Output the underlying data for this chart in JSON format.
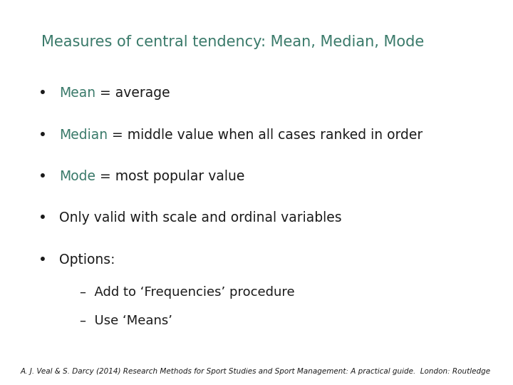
{
  "title": "Measures of central tendency: Mean, Median, Mode",
  "title_color": "#3a7a6a",
  "title_fontsize": 15,
  "background_color": "#ffffff",
  "teal_color": "#3a7a6a",
  "black_color": "#1a1a1a",
  "bullet_items": [
    {
      "bullet_colored": "Mean",
      "bullet_rest": " = average"
    },
    {
      "bullet_colored": "Median",
      "bullet_rest": " = middle value when all cases ranked in order"
    },
    {
      "bullet_colored": "Mode",
      "bullet_rest": " = most popular value"
    },
    {
      "bullet_colored": "",
      "bullet_rest": "Only valid with scale and ordinal variables"
    },
    {
      "bullet_colored": "",
      "bullet_rest": "Options:"
    }
  ],
  "sub_items": [
    "–  Add to ‘Frequencies’ procedure",
    "–  Use ‘Means’"
  ],
  "footer": "A. J. Veal & S. Darcy (2014) Research Methods for Sport Studies and Sport Management: A practical guide.  London: Routledge",
  "bullet_fontsize": 13.5,
  "sub_fontsize": 13,
  "footer_fontsize": 7.5
}
